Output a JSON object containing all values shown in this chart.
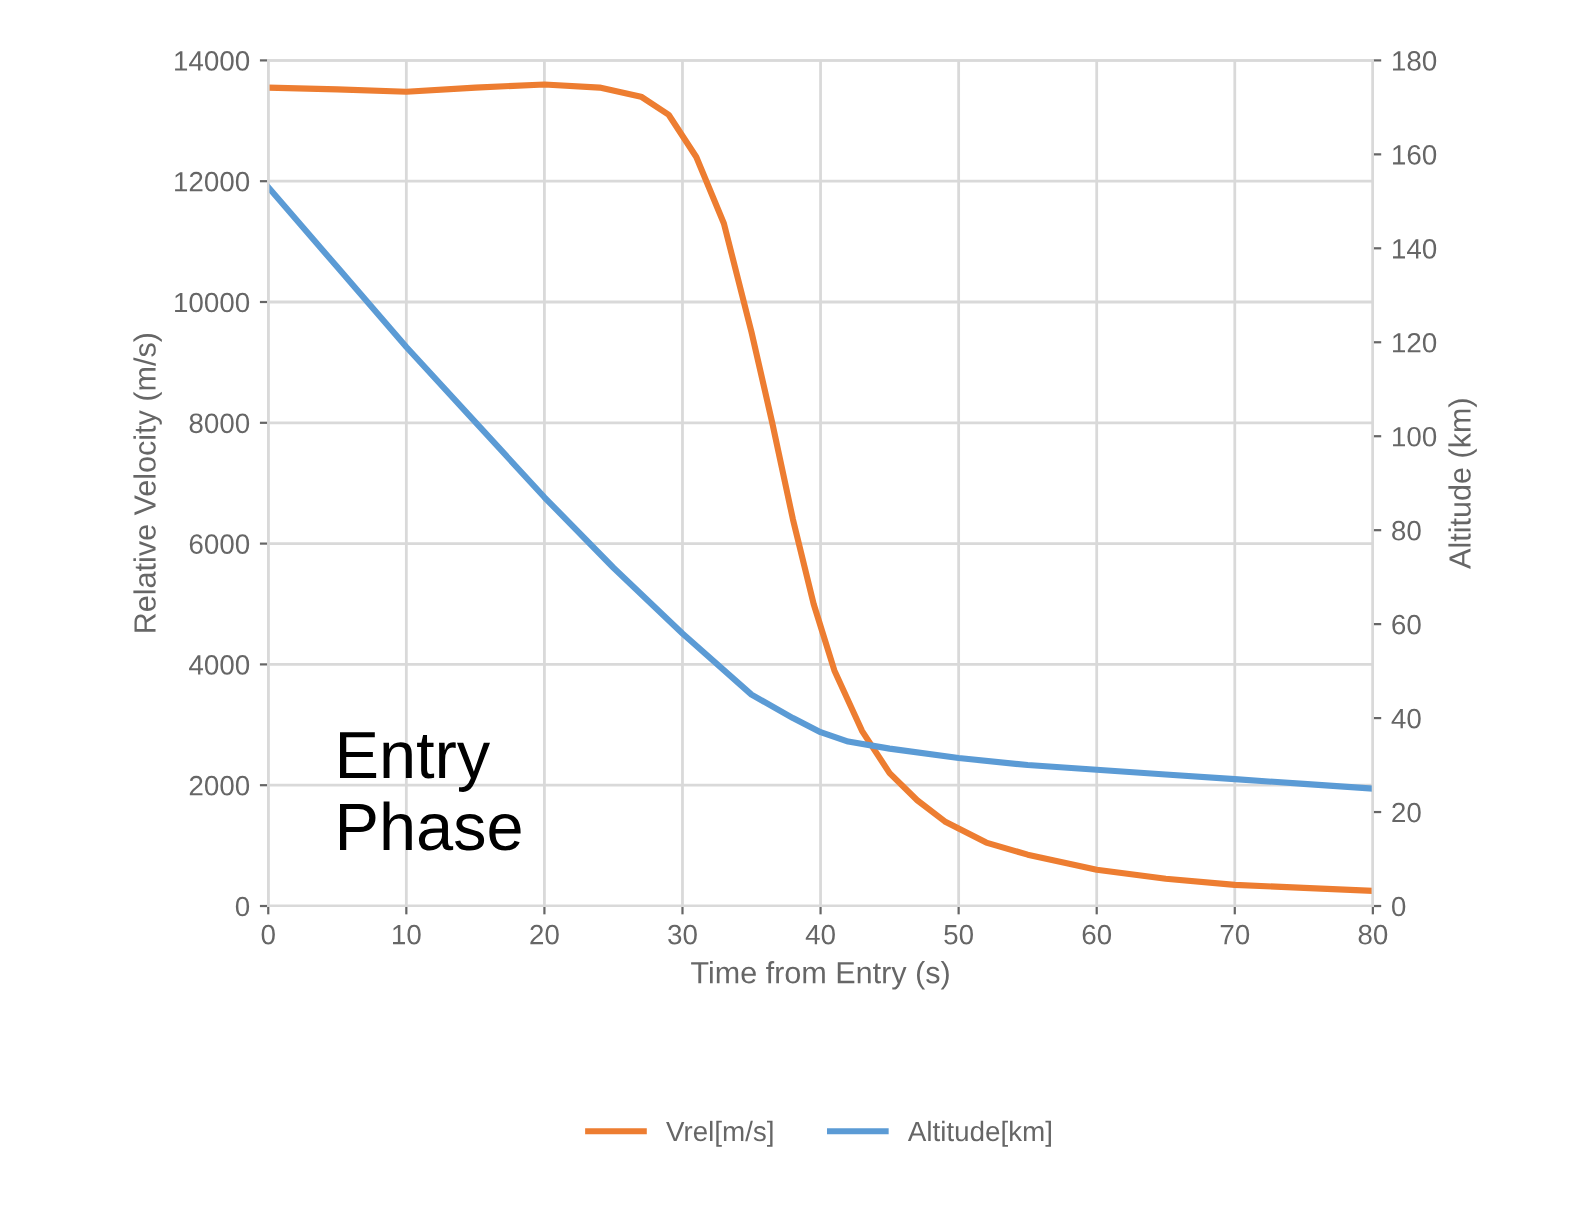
{
  "chart_data": {
    "type": "line",
    "xlabel": "Time from Entry (s)",
    "ylabel": "Relative Velocity (m/s)",
    "y2label": "Altitude (km)",
    "annotations": [
      "Entry\nPhase"
    ],
    "series": [
      {
        "name": "Vrel[m/s]",
        "color": "#ed7d31",
        "axis": "y",
        "x": [
          0,
          5,
          10,
          15,
          20,
          24,
          27,
          29,
          31,
          33,
          35,
          36.5,
          38,
          39.5,
          41,
          43,
          45,
          47,
          49,
          52,
          55,
          60,
          65,
          70,
          75,
          80
        ],
        "values": [
          13550,
          13520,
          13480,
          13550,
          13600,
          13550,
          13400,
          13100,
          12400,
          11300,
          9500,
          8000,
          6400,
          5000,
          3900,
          2900,
          2200,
          1750,
          1400,
          1050,
          850,
          600,
          450,
          350,
          300,
          250
        ]
      },
      {
        "name": "Altitude[km]",
        "color": "#5b9bd5",
        "axis": "y2",
        "x": [
          0,
          5,
          10,
          15,
          20,
          25,
          30,
          35,
          38,
          40,
          42,
          45,
          50,
          55,
          60,
          65,
          70,
          75,
          80
        ],
        "values": [
          153,
          136,
          119,
          103,
          87,
          72,
          58,
          45,
          40,
          37,
          35,
          33.5,
          31.5,
          30,
          29,
          28,
          27,
          26,
          25
        ]
      }
    ],
    "xlim": [
      0,
      80
    ],
    "xticks": [
      0,
      10,
      20,
      30,
      40,
      50,
      60,
      70,
      80
    ],
    "ylim": [
      0,
      14000
    ],
    "yticks": [
      0,
      2000,
      4000,
      6000,
      8000,
      10000,
      12000,
      14000
    ],
    "y2lim": [
      0,
      180
    ],
    "y2ticks": [
      0,
      20,
      40,
      60,
      80,
      100,
      120,
      140,
      160,
      180
    ],
    "grid": true,
    "legend": "bottom",
    "line_style": "solid",
    "marker": "none"
  }
}
